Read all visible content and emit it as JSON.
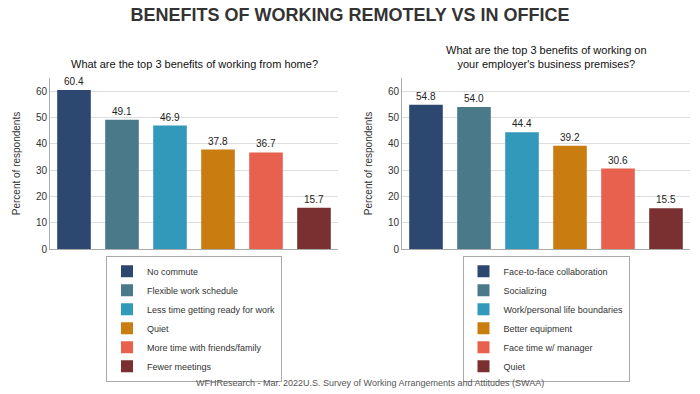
{
  "title": "BENEFITS OF WORKING REMOTELY VS IN OFFICE",
  "annotations": [
    "WFHResearch - Mar. 2022U.S. Survey of Working Arrangements and Attitudes (SWAA)"
  ],
  "chart_data": [
    {
      "type": "bar",
      "subtitle": "What are the top 3 benefits of working from home?",
      "ylabel": "Percent of respondents",
      "categories": [
        "No commute",
        "Flexible work schedule",
        "Less time getting ready for work",
        "Quiet",
        "More time with friends/family",
        "Fewer meetings"
      ],
      "values": [
        60.4,
        49.1,
        46.9,
        37.8,
        36.7,
        15.7
      ],
      "value_labels": [
        "60.4",
        "49.1",
        "46.9",
        "37.8",
        "36.7",
        "15.7"
      ],
      "colors": [
        "#2c4770",
        "#4a7a8a",
        "#3399bb",
        "#c97d10",
        "#e8614e",
        "#7a3030"
      ],
      "ylim": [
        0,
        65
      ],
      "yticks": [
        0,
        10,
        20,
        30,
        40,
        50,
        60
      ],
      "grid": true,
      "data_labels": true,
      "legend": "bottom",
      "tick_labels": "y"
    },
    {
      "type": "bar",
      "subtitle": "What are the top 3 benefits of working on\nyour employer's business premises?",
      "ylabel": "Percent of respondents",
      "categories": [
        "Face-to-face collaboration",
        "Socializing",
        "Work/personal life boundaries",
        "Better equipment",
        "Face time w/ manager",
        "Quiet"
      ],
      "values": [
        54.8,
        54.0,
        44.4,
        39.2,
        30.6,
        15.5
      ],
      "value_labels": [
        "54.8",
        "54.0",
        "44.4",
        "39.2",
        "30.6",
        "15.5"
      ],
      "colors": [
        "#2c4770",
        "#4a7a8a",
        "#3399bb",
        "#c97d10",
        "#e8614e",
        "#7a3030"
      ],
      "ylim": [
        0,
        65
      ],
      "yticks": [
        0,
        10,
        20,
        30,
        40,
        50,
        60
      ],
      "grid": true,
      "data_labels": true,
      "legend": "bottom",
      "tick_labels": "y"
    }
  ]
}
